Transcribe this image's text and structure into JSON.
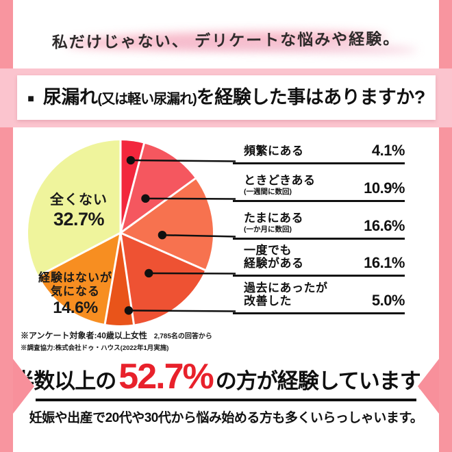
{
  "frame": {
    "side_border_color": "#f8959f",
    "title_band_color": "#fbc4ce",
    "underline_color": "#f49ab9",
    "highlight_red": "#e8212b"
  },
  "header": {
    "tagline": "私だけじゃない、 デリケートな悩みや経験。"
  },
  "title": {
    "bullet": "■",
    "segments": [
      {
        "text": "尿漏れ"
      },
      {
        "text": "(又は軽い尿漏れ)"
      },
      {
        "text": "を"
      },
      {
        "text": "経験"
      },
      {
        "text": "した事はありますか?"
      }
    ]
  },
  "chart_data": {
    "type": "pie",
    "unit": "%",
    "start_angle_deg": 0,
    "direction": "clockwise",
    "slices": [
      {
        "label": "頻繁にある",
        "sublabel": "",
        "value": 4.1,
        "display": "4.1%",
        "color": "#f2273d",
        "callout": true
      },
      {
        "label": "ときどきある",
        "sublabel": "(一週間に数回)",
        "value": 10.9,
        "display": "10.9%",
        "color": "#f5575f",
        "callout": true
      },
      {
        "label": "たまにある",
        "sublabel": "(一か月に数回)",
        "value": 16.6,
        "display": "16.6%",
        "color": "#f7724f",
        "callout": true
      },
      {
        "label": "一度でも\n経験がある",
        "sublabel": "",
        "value": 16.1,
        "display": "16.1%",
        "color": "#ee5233",
        "callout": true
      },
      {
        "label": "過去にあったが\n改善した",
        "sublabel": "",
        "value": 5.0,
        "display": "5.0%",
        "color": "#e9541a",
        "callout": true
      },
      {
        "label": "経験はないが\n気になる",
        "sublabel": "",
        "value": 14.6,
        "display": "14.6%",
        "color": "#f78e21",
        "callout": false
      },
      {
        "label": "全くない",
        "sublabel": "",
        "value": 32.7,
        "display": "32.7%",
        "color": "#eff49c",
        "callout": false
      }
    ]
  },
  "footnotes": {
    "line1_main": "※アンケート対象者:40歳以上女性",
    "line1_sub": "2,785名の回答から",
    "line2": "※調査協力:株式会社ドゥ・ハウス(2022年1月実施)"
  },
  "summary": {
    "prefix": "半数以上の",
    "highlight": "52.7%",
    "suffix": "の方が経験しています。",
    "note": "妊娠や出産で20代や30代から悩み始める方も多くいらっしゃいます。"
  }
}
